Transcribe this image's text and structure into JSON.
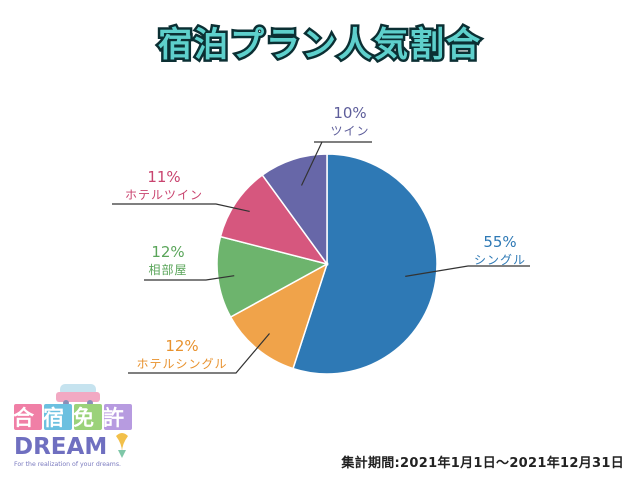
{
  "chart_data": {
    "type": "pie",
    "title": "宿泊プラン人気割合",
    "categories": [
      "シングル",
      "ホテルシングル",
      "相部屋",
      "ホテルツイン",
      "ツイン"
    ],
    "values": [
      55,
      12,
      12,
      11,
      10
    ],
    "labels": [
      "55%",
      "12%",
      "12%",
      "11%",
      "10%"
    ],
    "colors": [
      "#2e79b5",
      "#f0a34a",
      "#6db46d",
      "#d6577e",
      "#6767a8"
    ],
    "label_colors": [
      "#2e79b5",
      "#e8922e",
      "#5aa55a",
      "#c9446f",
      "#5d5d9a"
    ],
    "start": "top",
    "direction": "clockwise"
  },
  "period": "集計期間:2021年1月1日〜2021年12月31日",
  "logo": {
    "title": "合宿免許",
    "brand": "DREAM",
    "tagline": "For the realization of your dreams."
  }
}
